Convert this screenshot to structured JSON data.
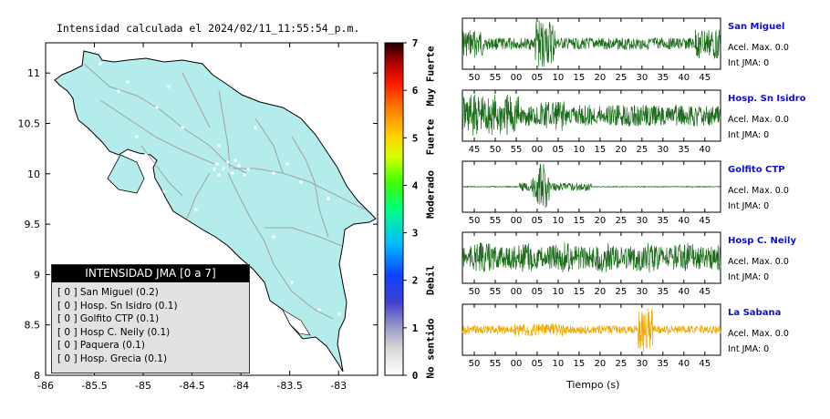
{
  "map": {
    "title": "Intensidad calculada el 2024/02/11_11:55:54_p.m.",
    "x_ticks": [
      "-86",
      "-85.5",
      "-85",
      "-84.5",
      "-84",
      "-83.5",
      "-83"
    ],
    "y_ticks": [
      "11",
      "10.5",
      "10",
      "9.5",
      "9",
      "8.5",
      "8"
    ],
    "land_color": "#b4ecec",
    "road_color": "#a0a0a0"
  },
  "legend": {
    "title": "INTENSIDAD JMA [0 a 7]",
    "items": [
      {
        "value": "[ 0 ]",
        "label": "San Miguel (0.2)"
      },
      {
        "value": "[ 0 ]",
        "label": "Hosp. Sn Isidro (0.1)"
      },
      {
        "value": "[ 0 ]",
        "label": "Golfito CTP (0.1)"
      },
      {
        "value": "[ 0 ]",
        "label": "Hosp C. Neily (0.1)"
      },
      {
        "value": "[ 0 ]",
        "label": "Paquera (0.1)"
      },
      {
        "value": "[ 0 ]",
        "label": "Hosp. Grecia (0.1)"
      }
    ]
  },
  "colorbar": {
    "ticks": [
      "0",
      "1",
      "2",
      "3",
      "4",
      "5",
      "6",
      "7"
    ],
    "categories": [
      "No sentido",
      "Debil",
      "Moderado",
      "Fuerte",
      "Muy Fuerte"
    ]
  },
  "waveforms": {
    "xlabel": "Tiempo (s)",
    "panels": [
      {
        "name": "San Miguel",
        "acel": "Acel. Max. 0.0",
        "int": "Int JMA: 0",
        "color": "#1a6b1a",
        "ticks": [
          "50",
          "55",
          "00",
          "05",
          "10",
          "15",
          "20",
          "25",
          "30",
          "35",
          "40",
          "45"
        ]
      },
      {
        "name": "Hosp. Sn Isidro",
        "acel": "Acel. Max. 0.0",
        "int": "Int JMA: 0",
        "color": "#1a6b1a",
        "ticks": [
          "45",
          "50",
          "55",
          "00",
          "05",
          "10",
          "15",
          "20",
          "25",
          "30",
          "35",
          "40"
        ]
      },
      {
        "name": "Golfito CTP",
        "acel": "Acel. Max. 0.0",
        "int": "Int JMA: 0",
        "color": "#1a6b1a",
        "ticks": [
          "50",
          "55",
          "00",
          "05",
          "10",
          "15",
          "20",
          "25",
          "30",
          "35",
          "40",
          "45"
        ]
      },
      {
        "name": "Hosp C. Neily",
        "acel": "Acel. Max. 0.0",
        "int": "Int JMA: 0",
        "color": "#1a6b1a",
        "ticks": [
          "50",
          "55",
          "00",
          "05",
          "10",
          "15",
          "20",
          "25",
          "30",
          "35",
          "40",
          "45"
        ]
      },
      {
        "name": "La Sabana",
        "acel": "Acel. Max. 0.0",
        "int": "Int JMA: 0",
        "color": "#f0a800",
        "ticks": [
          "50",
          "55",
          "00",
          "05",
          "10",
          "15",
          "20",
          "25",
          "30",
          "35",
          "40",
          "45"
        ]
      }
    ]
  },
  "chart_data": [
    {
      "type": "scatter",
      "title": "Intensidad calculada el 2024/02/11_11:55:54_p.m.",
      "xlim": [
        -86,
        -82.6
      ],
      "ylim": [
        8,
        11.3
      ],
      "stations": [
        {
          "name": "San Miguel",
          "intensity": 0.2
        },
        {
          "name": "Hosp. Sn Isidro",
          "intensity": 0.1
        },
        {
          "name": "Golfito CTP",
          "intensity": 0.1
        },
        {
          "name": "Hosp C. Neily",
          "intensity": 0.1
        },
        {
          "name": "Paquera",
          "intensity": 0.1
        },
        {
          "name": "Hosp. Grecia",
          "intensity": 0.1
        }
      ],
      "colorbar_range": [
        0,
        7
      ]
    },
    {
      "type": "line",
      "xlabel": "Tiempo (s)",
      "series": [
        {
          "name": "San Miguel",
          "acel_max": 0.0,
          "int_jma": 0
        },
        {
          "name": "Hosp. Sn Isidro",
          "acel_max": 0.0,
          "int_jma": 0
        },
        {
          "name": "Golfito CTP",
          "acel_max": 0.0,
          "int_jma": 0
        },
        {
          "name": "Hosp C. Neily",
          "acel_max": 0.0,
          "int_jma": 0
        },
        {
          "name": "La Sabana",
          "acel_max": 0.0,
          "int_jma": 0
        }
      ]
    }
  ]
}
